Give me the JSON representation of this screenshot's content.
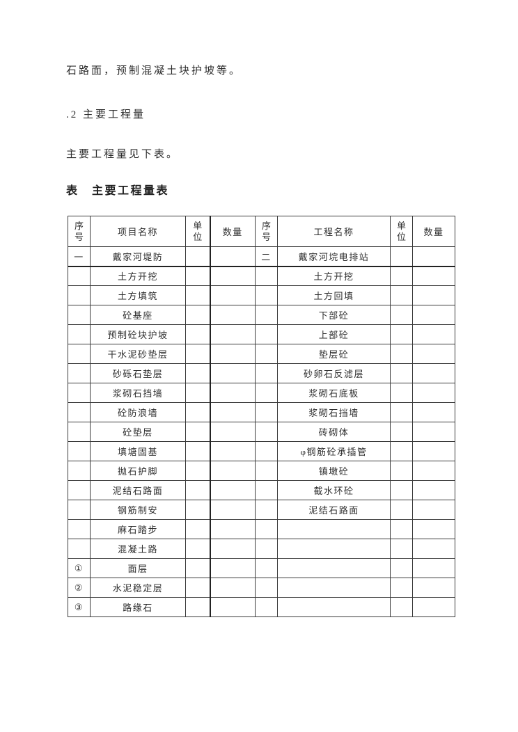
{
  "document": {
    "paragraphs": [
      "石路面，预制混凝土块护坡等。",
      ".2 主要工程量",
      "主要工程量见下表。"
    ],
    "table_title": "表　主要工程量表"
  },
  "table": {
    "headers": [
      "序号",
      "项目名称",
      "单位",
      "数量",
      "序号",
      "工程名称",
      "单位",
      "数量"
    ],
    "rows": [
      [
        "一",
        "戴家河堤防",
        "",
        "",
        "二",
        "戴家河垸电排站",
        "",
        ""
      ],
      [
        "",
        "土方开挖",
        "",
        "",
        "",
        "土方开挖",
        "",
        ""
      ],
      [
        "",
        "土方填筑",
        "",
        "",
        "",
        "土方回填",
        "",
        ""
      ],
      [
        "",
        "砼基座",
        "",
        "",
        "",
        "下部砼",
        "",
        ""
      ],
      [
        "",
        "预制砼块护坡",
        "",
        "",
        "",
        "上部砼",
        "",
        ""
      ],
      [
        "",
        "干水泥砂垫层",
        "",
        "",
        "",
        "垫层砼",
        "",
        ""
      ],
      [
        "",
        "砂砾石垫层",
        "",
        "",
        "",
        "砂卵石反滤层",
        "",
        ""
      ],
      [
        "",
        "浆砌石挡墙",
        "",
        "",
        "",
        "浆砌石底板",
        "",
        ""
      ],
      [
        "",
        "砼防浪墙",
        "",
        "",
        "",
        "浆砌石挡墙",
        "",
        ""
      ],
      [
        "",
        "砼垫层",
        "",
        "",
        "",
        "砖砌体",
        "",
        ""
      ],
      [
        "",
        "填塘固基",
        "",
        "",
        "",
        "φ钢筋砼承插管",
        "",
        ""
      ],
      [
        "",
        "抛石护脚",
        "",
        "",
        "",
        "镇墩砼",
        "",
        ""
      ],
      [
        "",
        "泥结石路面",
        "",
        "",
        "",
        "截水环砼",
        "",
        ""
      ],
      [
        "",
        "钢筋制安",
        "",
        "",
        "",
        "泥结石路面",
        "",
        ""
      ],
      [
        "",
        "麻石踏步",
        "",
        "",
        "",
        "",
        "",
        ""
      ],
      [
        "",
        "混凝土路",
        "",
        "",
        "",
        "",
        "",
        ""
      ],
      [
        "①",
        "面层",
        "",
        "",
        "",
        "",
        "",
        ""
      ],
      [
        "②",
        "水泥稳定层",
        "",
        "",
        "",
        "",
        "",
        ""
      ],
      [
        "③",
        "路缘石",
        "",
        "",
        "",
        "",
        "",
        ""
      ]
    ]
  }
}
